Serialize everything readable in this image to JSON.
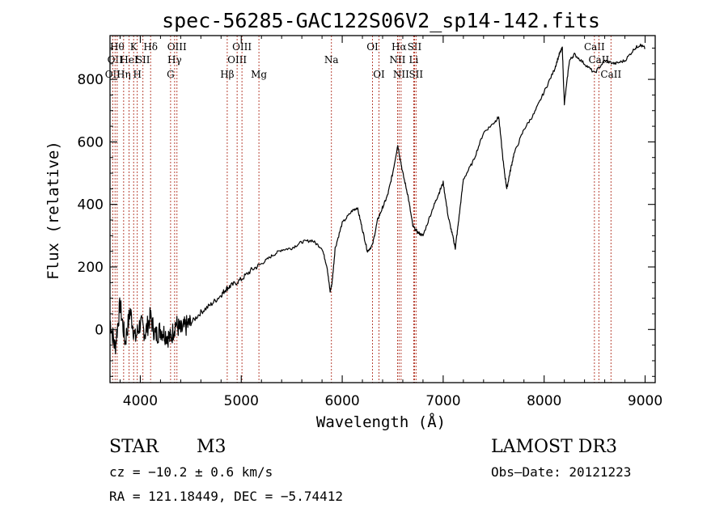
{
  "chart_data": {
    "type": "line",
    "title": "spec-56285-GAC122S06V2_sp14-142.fits",
    "xlabel": "Wavelength (Å)",
    "ylabel": "Flux (relative)",
    "xlim": [
      3700,
      9100
    ],
    "ylim": [
      -170,
      940
    ],
    "xticks": [
      4000,
      5000,
      6000,
      7000,
      8000,
      9000
    ],
    "xtick_labels": [
      "4000",
      "5000",
      "6000",
      "7000",
      "8000",
      "9000"
    ],
    "yticks": [
      0,
      200,
      400,
      600,
      800
    ],
    "ytick_labels": [
      "0",
      "200",
      "400",
      "600",
      "800"
    ],
    "series": [
      {
        "name": "flux",
        "x": [
          3700,
          3750,
          3800,
          3850,
          3900,
          3950,
          4000,
          4050,
          4100,
          4150,
          4200,
          4250,
          4300,
          4350,
          4400,
          4450,
          4500,
          4600,
          4700,
          4800,
          4850,
          4900,
          5000,
          5100,
          5200,
          5300,
          5400,
          5500,
          5600,
          5700,
          5800,
          5850,
          5880,
          5900,
          5930,
          6000,
          6100,
          6150,
          6200,
          6250,
          6300,
          6350,
          6400,
          6450,
          6500,
          6550,
          6600,
          6650,
          6700,
          6750,
          6800,
          6900,
          6950,
          7000,
          7050,
          7100,
          7120,
          7150,
          7200,
          7300,
          7400,
          7500,
          7550,
          7600,
          7630,
          7660,
          7700,
          7800,
          7900,
          8000,
          8100,
          8150,
          8180,
          8200,
          8250,
          8300,
          8400,
          8500,
          8600,
          8700,
          8800,
          8900,
          8950,
          9000
        ],
        "y": [
          30,
          -60,
          80,
          -40,
          60,
          -30,
          20,
          -10,
          40,
          -20,
          0,
          -15,
          -30,
          20,
          -5,
          10,
          20,
          55,
          80,
          110,
          130,
          140,
          160,
          190,
          210,
          235,
          255,
          260,
          280,
          285,
          260,
          200,
          120,
          150,
          260,
          340,
          380,
          390,
          320,
          250,
          270,
          350,
          390,
          430,
          500,
          590,
          500,
          430,
          330,
          310,
          300,
          390,
          430,
          470,
          360,
          290,
          260,
          340,
          480,
          540,
          630,
          660,
          680,
          520,
          450,
          500,
          560,
          640,
          690,
          760,
          830,
          880,
          900,
          720,
          860,
          880,
          850,
          820,
          860,
          850,
          860,
          900,
          910,
          900
        ]
      }
    ],
    "lines": [
      {
        "wl": 3727,
        "label": "OII",
        "row": 3
      },
      {
        "wl": 3750,
        "label": "OII",
        "row": 2
      },
      {
        "wl": 3771,
        "label": "Hθ",
        "row": 1
      },
      {
        "wl": 3835,
        "label": "Hη",
        "row": 3
      },
      {
        "wl": 3889,
        "label": "HeI",
        "row": 2
      },
      {
        "wl": 3934,
        "label": "K",
        "row": 1
      },
      {
        "wl": 3970,
        "label": "H",
        "row": 3
      },
      {
        "wl": 4026,
        "label": "SII",
        "row": 2
      },
      {
        "wl": 4102,
        "label": "Hδ",
        "row": 1
      },
      {
        "wl": 4300,
        "label": "G",
        "row": 3
      },
      {
        "wl": 4340,
        "label": "Hγ",
        "row": 2
      },
      {
        "wl": 4363,
        "label": "OIII",
        "row": 1
      },
      {
        "wl": 4861,
        "label": "Hβ",
        "row": 3
      },
      {
        "wl": 4959,
        "label": "OIII",
        "row": 2
      },
      {
        "wl": 5007,
        "label": "OIII",
        "row": 1
      },
      {
        "wl": 5175,
        "label": "Mg",
        "row": 3
      },
      {
        "wl": 5893,
        "label": "Na",
        "row": 2
      },
      {
        "wl": 6300,
        "label": "OI",
        "row": 1
      },
      {
        "wl": 6364,
        "label": "OI",
        "row": 3
      },
      {
        "wl": 6548,
        "label": "NII",
        "row": 2
      },
      {
        "wl": 6563,
        "label": "Hα",
        "row": 1
      },
      {
        "wl": 6583,
        "label": "NII",
        "row": 3
      },
      {
        "wl": 6708,
        "label": "Li",
        "row": 2
      },
      {
        "wl": 6716,
        "label": "SII",
        "row": 1
      },
      {
        "wl": 6731,
        "label": "SII",
        "row": 3
      },
      {
        "wl": 8498,
        "label": "CaII",
        "row": 1
      },
      {
        "wl": 8542,
        "label": "CaII",
        "row": 2
      },
      {
        "wl": 8662,
        "label": "CaII",
        "row": 3
      }
    ]
  },
  "info": {
    "class": "STAR",
    "subclass": "M3",
    "survey": "LAMOST DR3",
    "redshift": "cz = −10.2 ± 0.6 km/s",
    "obsdate": "Obs–Date: 20121223",
    "coords": "RA = 121.18449, DEC =  −5.74412"
  }
}
